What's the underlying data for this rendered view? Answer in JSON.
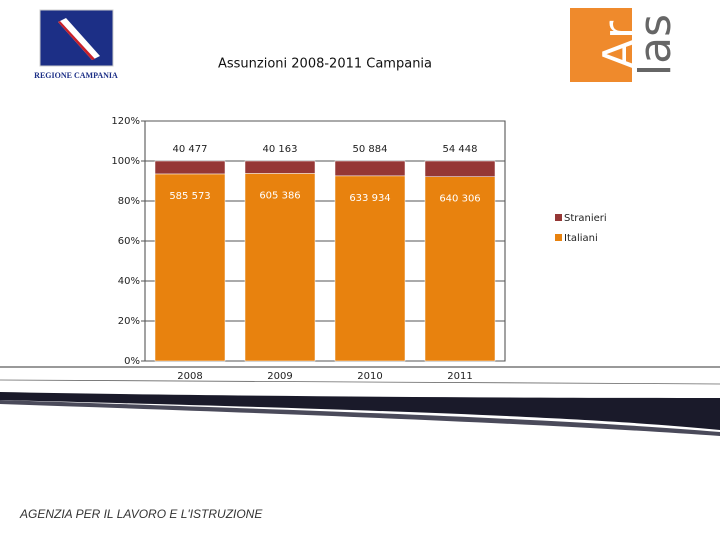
{
  "header": {
    "logo_left": "REGIONE CAMPANIA",
    "logo_right_top": "Ar",
    "logo_right_bottom": "las"
  },
  "footer": "AGENZIA PER IL LAVORO E L'ISTRUZIONE",
  "chart_data": {
    "type": "bar",
    "stacking": "percent",
    "title": "Assunzioni 2008-2011 Campania",
    "categories": [
      "2008",
      "2009",
      "2010",
      "2011"
    ],
    "series": [
      {
        "name": "Italiani",
        "color": "#e8820e",
        "values": [
          585573,
          605386,
          633934,
          640306
        ],
        "value_labels": [
          "585 573",
          "605 386",
          "633 934",
          "640 306"
        ]
      },
      {
        "name": "Stranieri",
        "color": "#953735",
        "values": [
          40477,
          40163,
          50884,
          54448
        ],
        "value_labels": [
          "40 477",
          "40 163",
          "50 884",
          "54 448"
        ]
      }
    ],
    "ylim": [
      0,
      120
    ],
    "yticks": [
      {
        "value": 0,
        "label": "0%"
      },
      {
        "value": 20,
        "label": "20%"
      },
      {
        "value": 40,
        "label": "40%"
      },
      {
        "value": 60,
        "label": "60%"
      },
      {
        "value": 80,
        "label": "80%"
      },
      {
        "value": 100,
        "label": "100%"
      },
      {
        "value": 120,
        "label": "120%"
      }
    ],
    "grid": true,
    "legend": "right"
  }
}
